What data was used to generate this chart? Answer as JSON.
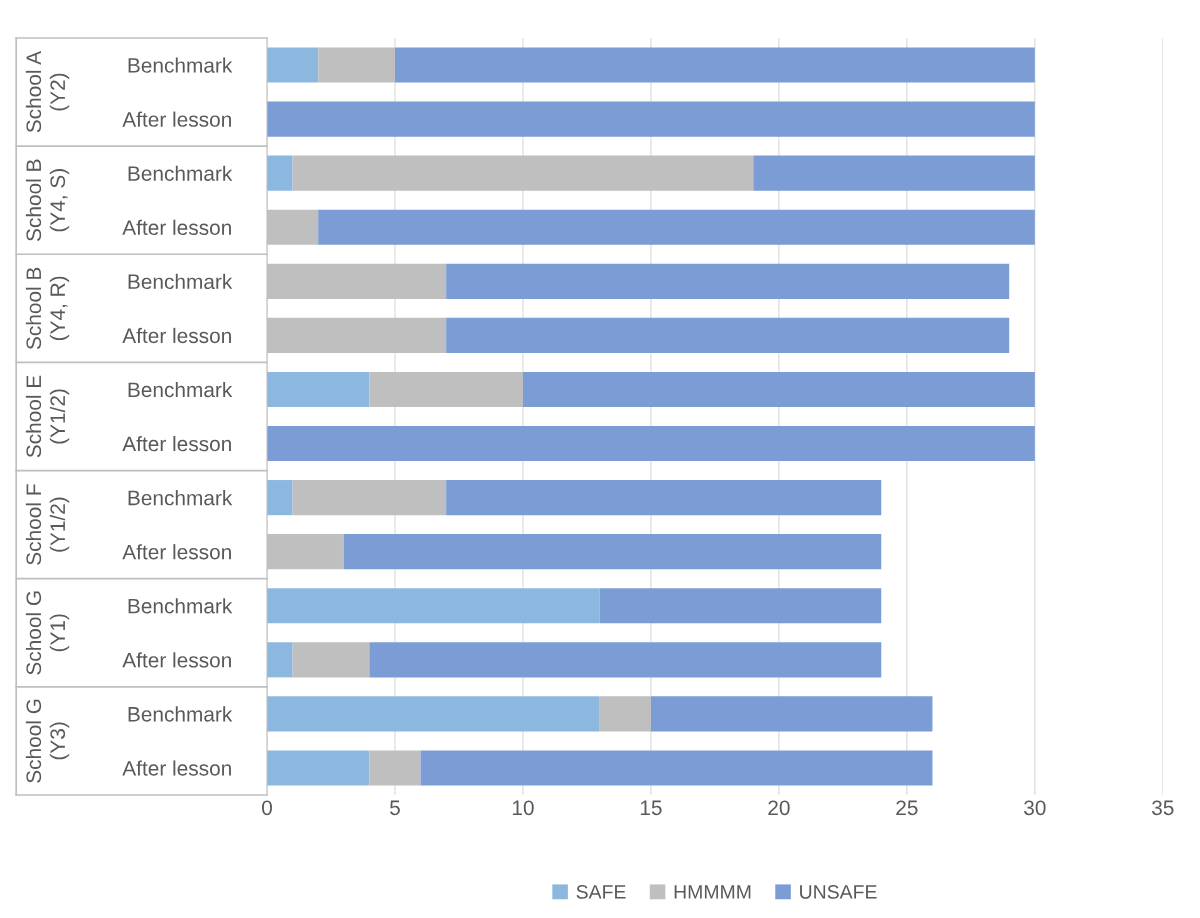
{
  "chart_data": {
    "type": "bar",
    "orientation": "horizontal",
    "stacked": true,
    "categories": [
      "Benchmark",
      "After lesson",
      "Benchmark",
      "After lesson",
      "Benchmark",
      "After lesson",
      "Benchmark",
      "After lesson",
      "Benchmark",
      "After lesson",
      "Benchmark",
      "After lesson",
      "Benchmark",
      "After lesson"
    ],
    "annotations": [
      "School A\n(Y2)",
      "School B\n(Y4, S)",
      "School B\n(Y4, R)",
      "School E\n(Y1/2)",
      "School F\n(Y1/2)",
      "School G\n(Y1)",
      "School G\n(Y3)"
    ],
    "series": [
      {
        "name": "SAFE",
        "color": "#8cb8e0",
        "values": [
          2,
          0,
          1,
          0,
          0,
          0,
          4,
          0,
          1,
          0,
          13,
          1,
          13,
          4
        ]
      },
      {
        "name": "HMMMM",
        "color": "#bfbfbf",
        "values": [
          3,
          0,
          18,
          2,
          7,
          7,
          6,
          0,
          6,
          3,
          0,
          3,
          2,
          2
        ]
      },
      {
        "name": "UNSAFE",
        "color": "#7b9cd4",
        "values": [
          25,
          30,
          11,
          28,
          22,
          22,
          20,
          30,
          17,
          21,
          11,
          20,
          11,
          20
        ]
      }
    ],
    "xlim": [
      0,
      35
    ],
    "xticks": [
      0,
      5,
      10,
      15,
      20,
      25,
      30,
      35
    ],
    "grid": "x",
    "legend": "bottom"
  }
}
